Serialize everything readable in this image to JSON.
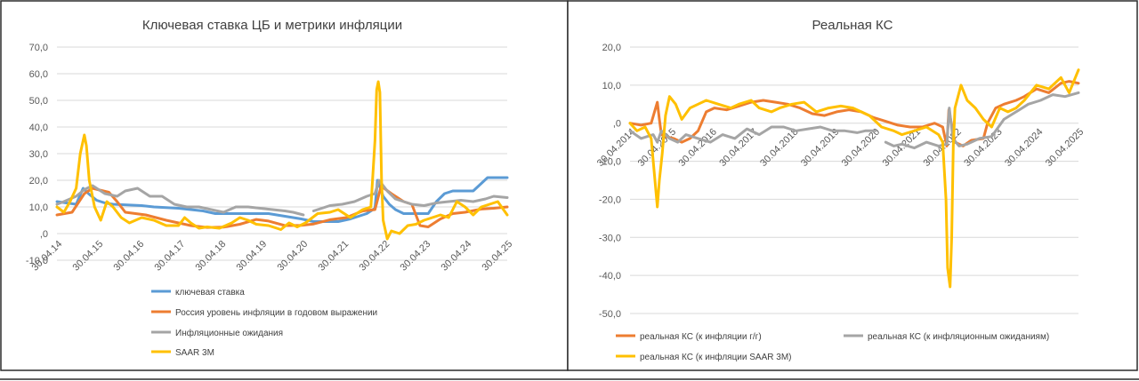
{
  "chart_data": [
    {
      "type": "line",
      "title": "Ключевая ставка ЦБ и метрики инфляции",
      "xlabel": "",
      "ylabel": "",
      "ylim": [
        -10,
        70
      ],
      "y_ticks": [
        "-10,0",
        ",0",
        "10,0",
        "20,0",
        "30,0",
        "40,0",
        "50,0",
        "60,0",
        "70,0"
      ],
      "y_tick_values": [
        -10,
        0,
        10,
        20,
        30,
        40,
        50,
        60,
        70
      ],
      "xlim": [
        2014.33,
        2025.33
      ],
      "x_ticks": [
        "30.04.14",
        "30.04.15",
        "30.04.16",
        "30.04.17",
        "30.04.18",
        "30.04.19",
        "30.04.20",
        "30.04.21",
        "30.04.22",
        "30.04.23",
        "30.04.24",
        "30.04.25"
      ],
      "x_tick_values": [
        2014.33,
        2015.33,
        2016.33,
        2017.33,
        2018.33,
        2019.33,
        2020.33,
        2021.33,
        2022.33,
        2023.33,
        2024.33,
        2025.33
      ],
      "legend_position": "bottom",
      "series": [
        {
          "name": "ключевая ставка",
          "color": "#5B9BD5",
          "x": [
            2014.33,
            2014.8,
            2014.97,
            2015.1,
            2015.3,
            2015.5,
            2015.7,
            2016.4,
            2016.7,
            2017.3,
            2017.6,
            2017.9,
            2018.2,
            2018.8,
            2019.5,
            2019.9,
            2020.3,
            2020.6,
            2021.2,
            2021.5,
            2021.9,
            2022.1,
            2022.16,
            2022.3,
            2022.45,
            2022.6,
            2022.8,
            2023.4,
            2023.6,
            2023.8,
            2024.0,
            2024.5,
            2024.85,
            2025.33
          ],
          "values": [
            12,
            11,
            17,
            15,
            12.5,
            11.5,
            11,
            10.5,
            10,
            9.5,
            9,
            8.5,
            7.5,
            7.5,
            7.5,
            6.5,
            5.5,
            4.5,
            4.5,
            5.5,
            7.5,
            9.5,
            20,
            14,
            11,
            9,
            7.5,
            7.5,
            12,
            15,
            16,
            16,
            21,
            21
          ]
        },
        {
          "name": "Россия уровень инфляции в годовом выражении",
          "color": "#ED7D31",
          "x": [
            2014.33,
            2014.7,
            2015.0,
            2015.2,
            2015.33,
            2015.6,
            2015.8,
            2016.0,
            2016.5,
            2017.0,
            2017.3,
            2017.6,
            2018.0,
            2018.4,
            2018.8,
            2019.2,
            2019.5,
            2019.9,
            2020.3,
            2020.6,
            2021.0,
            2021.4,
            2021.8,
            2022.1,
            2022.25,
            2022.5,
            2022.8,
            2023.0,
            2023.2,
            2023.4,
            2023.7,
            2024.0,
            2024.3,
            2024.7,
            2025.0,
            2025.33
          ],
          "values": [
            7,
            8,
            15,
            17,
            16.5,
            15.5,
            12,
            8,
            7,
            5,
            4,
            3,
            2.3,
            2.4,
            3.5,
            5.3,
            4.7,
            3,
            3.1,
            3.6,
            5.2,
            6,
            8.5,
            9,
            17.8,
            15,
            12,
            11,
            3,
            2.5,
            5.5,
            7.5,
            8,
            9.2,
            9.5,
            10
          ]
        },
        {
          "name": "Инфляционные ожидания",
          "color": "#A5A5A5",
          "x": [
            2014.33,
            2014.5,
            2014.8,
            2015.0,
            2015.2,
            2015.5,
            2015.8,
            2016.0,
            2016.3,
            2016.6,
            2016.9,
            2017.2,
            2017.5,
            2017.8,
            2018.1,
            2018.4,
            2018.7,
            2019.0,
            2019.3,
            2019.6,
            2019.9,
            2020.1,
            2020.35,
            null,
            2020.6,
            2020.8,
            2021.0,
            2021.3,
            2021.6,
            2021.9,
            2022.1,
            2022.2,
            2022.4,
            2022.6,
            2022.8,
            2023.0,
            2023.3,
            2023.6,
            2023.9,
            2024.2,
            2024.5,
            2024.8,
            2025.0,
            2025.33
          ],
          "values": [
            11,
            12,
            14,
            16.5,
            18,
            15,
            14,
            16,
            17,
            14,
            14,
            11,
            10,
            10,
            9,
            8,
            10,
            10,
            9.5,
            9,
            8.5,
            8,
            7,
            null,
            8.5,
            9.5,
            10.5,
            11,
            12,
            14,
            15,
            20,
            16,
            13,
            12,
            11,
            10.5,
            11.5,
            12,
            12.5,
            12,
            13,
            14,
            13.5
          ]
        },
        {
          "name": "SAAR 3M",
          "color": "#FFC000",
          "x": [
            2014.33,
            2014.5,
            2014.65,
            2014.8,
            2014.9,
            2015.0,
            2015.05,
            2015.12,
            2015.25,
            2015.4,
            2015.55,
            2015.7,
            2015.9,
            2016.1,
            2016.4,
            2016.7,
            2017.0,
            2017.3,
            2017.45,
            2017.6,
            2017.8,
            2018.0,
            2018.3,
            2018.6,
            2018.8,
            2019.0,
            2019.2,
            2019.5,
            2019.8,
            2020.0,
            2020.2,
            2020.4,
            2020.7,
            2021.0,
            2021.2,
            2021.5,
            2021.8,
            2022.0,
            2022.1,
            2022.14,
            2022.18,
            2022.22,
            2022.26,
            2022.3,
            2022.4,
            2022.5,
            2022.7,
            2022.9,
            2023.1,
            2023.3,
            2023.5,
            2023.7,
            2023.9,
            2024.1,
            2024.3,
            2024.5,
            2024.7,
            2024.9,
            2025.1,
            2025.33
          ],
          "values": [
            10,
            8,
            12,
            17,
            30,
            37,
            33,
            20,
            10,
            5,
            12,
            10,
            6,
            4,
            6,
            5,
            3,
            3,
            6,
            4,
            2,
            2.5,
            2,
            4,
            6,
            5,
            3.5,
            3,
            1.5,
            4,
            2.5,
            4,
            7.5,
            8,
            9,
            6,
            9,
            10,
            35,
            54,
            57,
            53,
            20,
            5,
            -2,
            1,
            0,
            3,
            3.5,
            5,
            6,
            7,
            6,
            12,
            10,
            7,
            10,
            11,
            12,
            7
          ]
        }
      ]
    },
    {
      "type": "line",
      "title": "Реальная КС",
      "xlabel": "",
      "ylabel": "",
      "ylim": [
        -50,
        20
      ],
      "y_ticks": [
        "-50,0",
        "-40,0",
        "-30,0",
        "-20,0",
        "-10,0",
        ",0",
        "10,0",
        "20,0"
      ],
      "y_tick_values": [
        -50,
        -40,
        -30,
        -20,
        -10,
        0,
        10,
        20
      ],
      "xlim": [
        2014.33,
        2025.33
      ],
      "x_ticks": [
        "30.04.2014",
        "30.04.2015",
        "30.04.2016",
        "30.04.2017",
        "30.04.2018",
        "30.04.2019",
        "30.04.2020",
        "30.04.2021",
        "30.04.2022",
        "30.04.2023",
        "30.04.2024",
        "30.04.2025"
      ],
      "x_tick_values": [
        2014.33,
        2015.33,
        2016.33,
        2017.33,
        2018.33,
        2019.33,
        2020.33,
        2021.33,
        2022.33,
        2023.33,
        2024.33,
        2025.33
      ],
      "legend_position": "bottom",
      "series": [
        {
          "name": "реальная КС (к инфляции г/г)",
          "color": "#ED7D31",
          "x": [
            2014.33,
            2014.6,
            2014.85,
            2015.0,
            2015.05,
            2015.1,
            2015.2,
            2015.4,
            2015.6,
            2015.8,
            2016.0,
            2016.2,
            2016.4,
            2016.7,
            2017.0,
            2017.3,
            2017.6,
            2017.9,
            2018.2,
            2018.5,
            2018.8,
            2019.1,
            2019.4,
            2019.7,
            2020.0,
            2020.3,
            2020.6,
            2020.9,
            2021.2,
            2021.5,
            2021.8,
            2022.0,
            2022.1,
            2022.15,
            2022.3,
            2022.5,
            2022.7,
            2023.0,
            2023.1,
            2023.3,
            2023.5,
            2023.8,
            2024.0,
            2024.3,
            2024.6,
            2024.9,
            2025.1,
            2025.33
          ],
          "values": [
            0,
            -0.5,
            0,
            5.5,
            1,
            -3,
            -3.5,
            -4,
            -5,
            -4,
            -2,
            3,
            4,
            3.5,
            4.5,
            5.5,
            6,
            5.5,
            5,
            4,
            2.5,
            2,
            3,
            3.5,
            3,
            1.5,
            0.5,
            -0.5,
            -1,
            -1,
            0,
            -1,
            -6,
            3.5,
            -5,
            -6,
            -4.5,
            -4,
            0,
            4,
            5,
            6,
            7,
            9,
            8,
            10.5,
            11,
            10.5
          ]
        },
        {
          "name": "реальная КС (к инфляционным ожиданиям)",
          "color": "#A5A5A5",
          "x": [
            2014.33,
            2014.6,
            2014.9,
            2015.0,
            2015.1,
            2015.3,
            2015.5,
            2015.7,
            2016.0,
            2016.3,
            2016.6,
            2016.9,
            2017.2,
            2017.5,
            2017.8,
            2018.1,
            2018.4,
            2018.7,
            2019.0,
            2019.3,
            2019.6,
            2019.9,
            2020.1,
            2020.35,
            null,
            2020.6,
            2020.8,
            2021.0,
            2021.3,
            2021.6,
            2021.9,
            2022.1,
            2022.16,
            2022.25,
            2022.4,
            2022.6,
            2022.9,
            2023.2,
            2023.5,
            2023.8,
            2024.1,
            2024.4,
            2024.7,
            2025.0,
            2025.33
          ],
          "values": [
            -2,
            -4,
            -3,
            -5,
            -2,
            -4,
            -5,
            -3,
            -4,
            -5,
            -3,
            -4,
            -1.5,
            -3,
            -1,
            -1,
            -2,
            -1.5,
            -1,
            -2,
            -2,
            -2.5,
            -2,
            -2,
            null,
            -5,
            -6,
            -5.5,
            -6.5,
            -5,
            -6,
            -5.5,
            4,
            -4,
            -6,
            -5.5,
            -4,
            -3.5,
            1,
            3,
            5,
            6,
            7.5,
            7,
            8
          ]
        },
        {
          "name": "реальная КС (к инфляции SAAR 3М)",
          "color": "#FFC000",
          "x": [
            2014.33,
            2014.5,
            2014.7,
            2014.85,
            2015.0,
            2015.05,
            2015.12,
            2015.2,
            2015.3,
            2015.45,
            2015.6,
            2015.8,
            2016.0,
            2016.2,
            2016.5,
            2016.8,
            2017.0,
            2017.3,
            2017.5,
            2017.8,
            2018.0,
            2018.3,
            2018.6,
            2018.9,
            2019.2,
            2019.5,
            2019.8,
            2020.0,
            2020.2,
            2020.5,
            2020.8,
            2021.0,
            2021.3,
            2021.6,
            2021.9,
            2022.0,
            2022.08,
            2022.12,
            2022.18,
            2022.22,
            2022.26,
            2022.3,
            2022.45,
            2022.6,
            2022.8,
            2023.0,
            2023.2,
            2023.4,
            2023.6,
            2023.8,
            2024.0,
            2024.3,
            2024.6,
            2024.9,
            2025.1,
            2025.33
          ],
          "values": [
            0,
            -2,
            -1,
            -4,
            -22,
            -15,
            -8,
            2,
            7,
            5,
            1,
            4,
            5,
            6,
            5,
            4,
            5,
            6,
            4,
            3,
            4,
            5,
            5.5,
            3,
            4,
            4.5,
            4,
            3,
            2,
            -1,
            -2,
            -3,
            -2,
            -1,
            -3,
            -5,
            -20,
            -38,
            -43,
            -30,
            -6,
            4,
            10,
            6,
            4,
            1,
            -1,
            4,
            3,
            4,
            6,
            10,
            9,
            12,
            8,
            14
          ]
        }
      ]
    }
  ]
}
